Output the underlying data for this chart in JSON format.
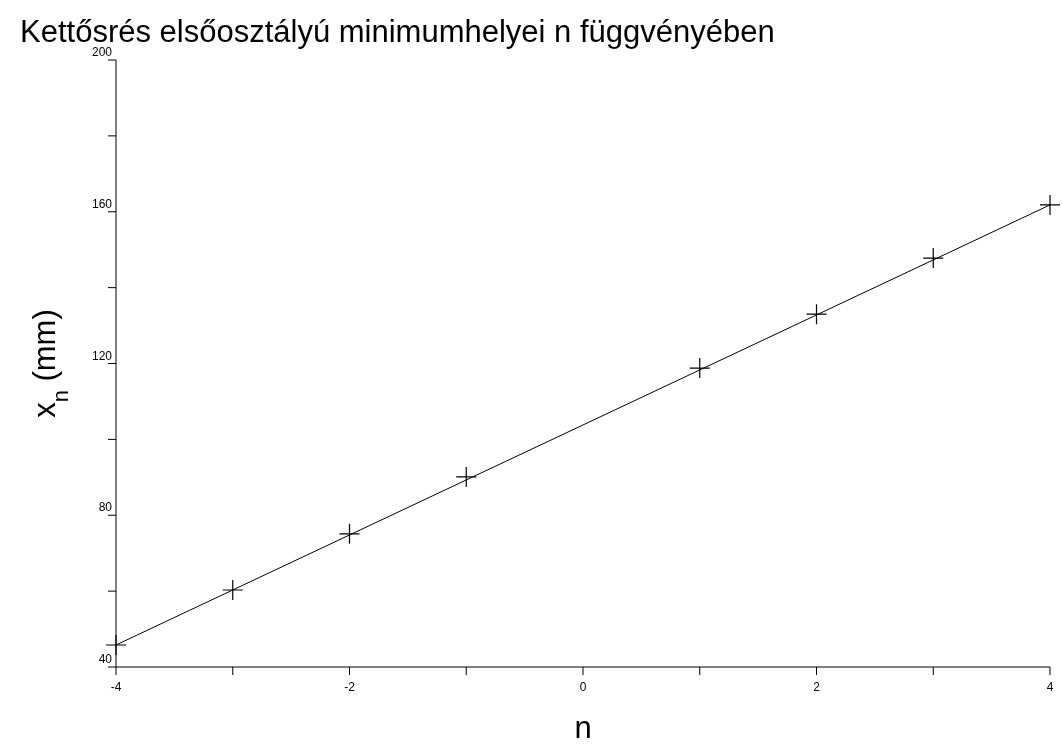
{
  "chart_data": {
    "type": "scatter",
    "title": "Kettősrés elsőosztályú minimumhelyei n függvényében",
    "xlabel": "n",
    "ylabel": "x$_{n}$ (mm)",
    "series": [
      {
        "marker": "cross",
        "color": "#000000",
        "x": [
          -4,
          -3,
          -2,
          -1,
          1,
          2,
          3,
          4
        ],
        "values": [
          45.8,
          60.3,
          75.1,
          90.1,
          118.8,
          133.0,
          147.8,
          161.8
        ]
      },
      {
        "type": "line",
        "marker": "none",
        "color": "#000000",
        "x": [
          -4,
          4
        ],
        "values": [
          45.8,
          161.8
        ]
      }
    ],
    "xlim": [
      -4,
      4
    ],
    "ylim": [
      40,
      200
    ],
    "xticks": [
      -4,
      {
        "value": -3,
        "label": null
      },
      -2,
      {
        "value": -1,
        "label": null
      },
      0,
      {
        "value": 1,
        "label": null
      },
      2,
      {
        "value": 3,
        "label": null
      },
      4
    ],
    "yticks": [
      40,
      {
        "value": 60,
        "label": null
      },
      80,
      {
        "value": 100,
        "label": null
      },
      120,
      {
        "value": 140,
        "label": null
      },
      160,
      {
        "value": 180,
        "label": null
      },
      200
    ],
    "line_style": "solid",
    "grid": false
  }
}
